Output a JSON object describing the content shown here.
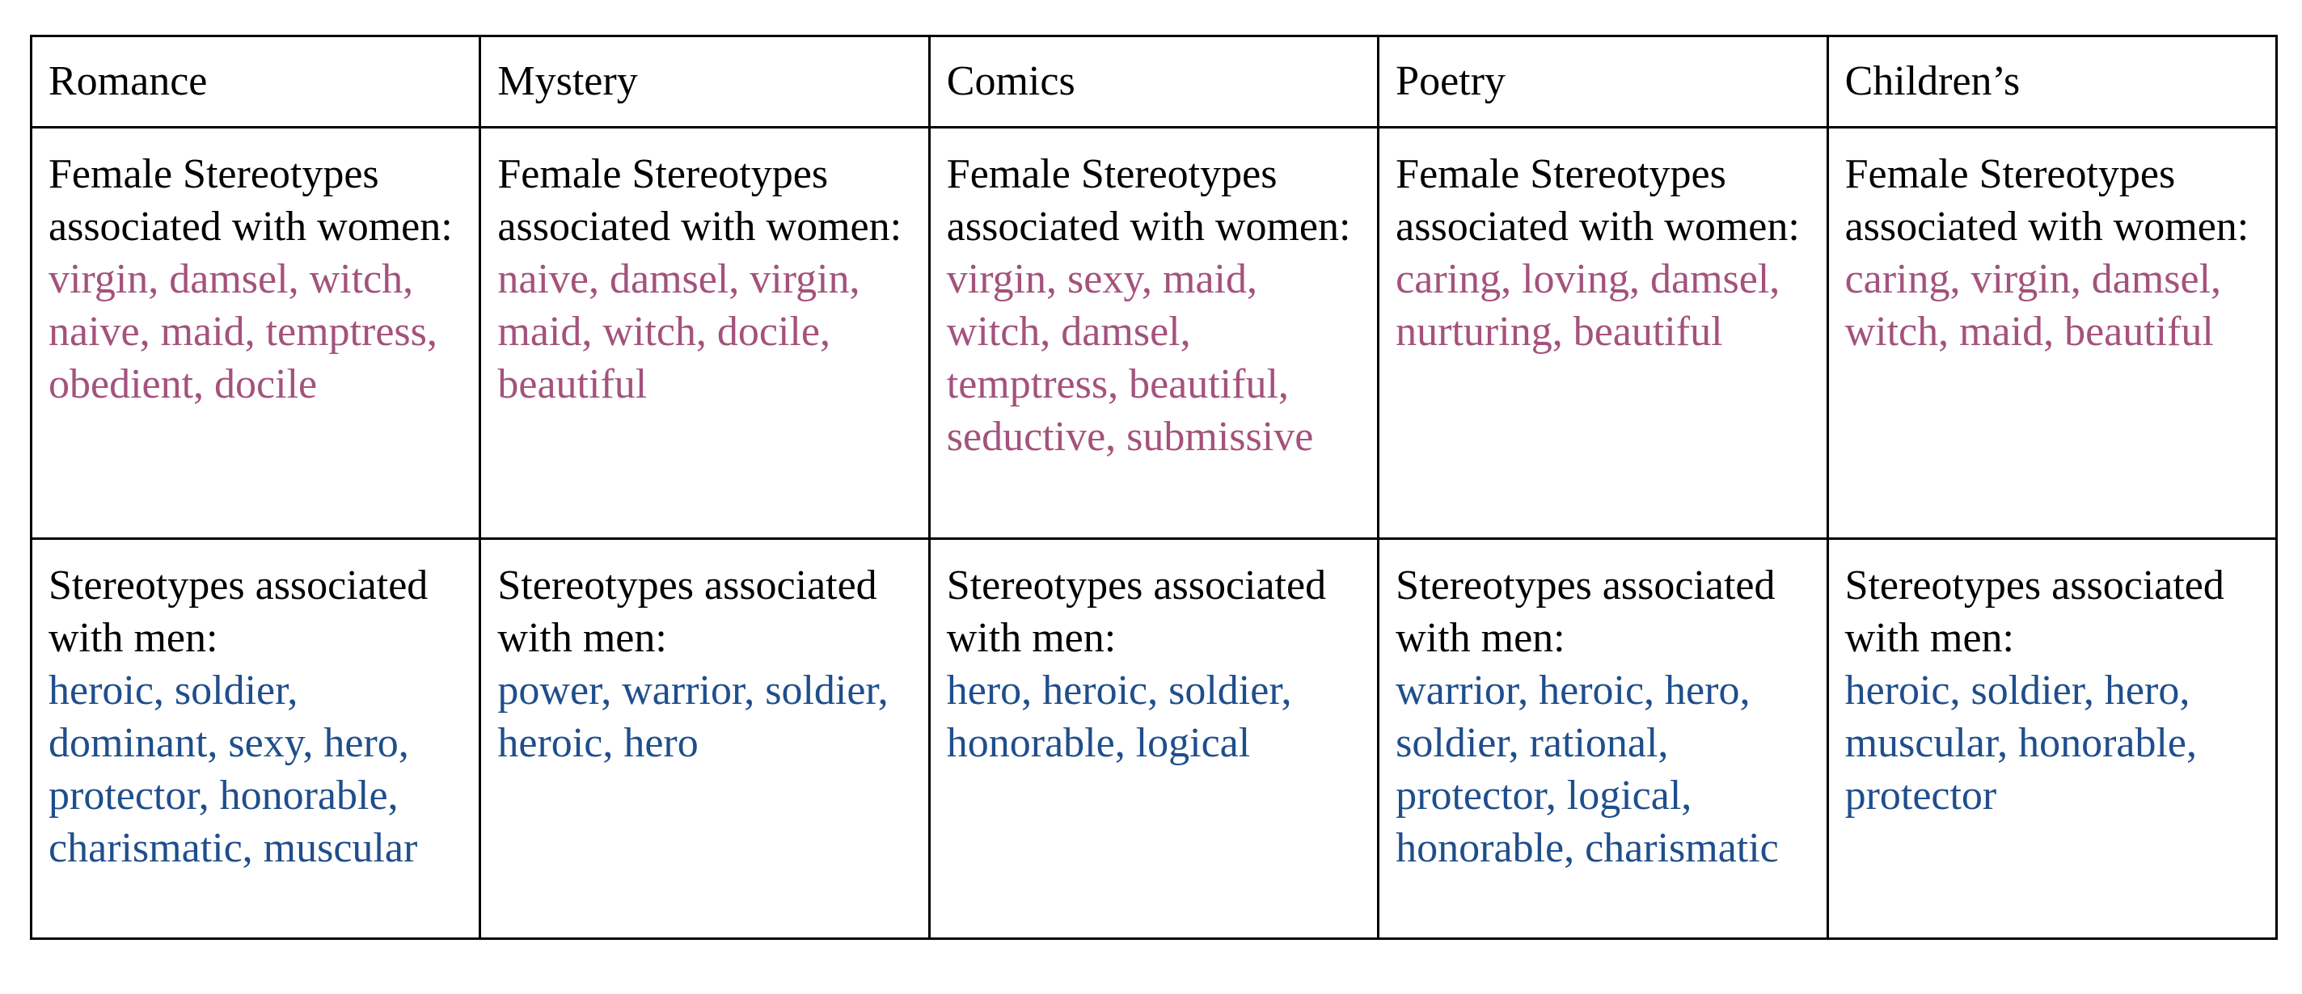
{
  "colors": {
    "female_terms": "#a4527c",
    "male_terms": "#1f4e8c",
    "text": "#000000",
    "border": "#000000"
  },
  "table": {
    "headers": [
      "Romance",
      "Mystery",
      "Comics",
      "Poetry",
      "Children’s"
    ],
    "female_label": "Female Stereotypes associated with women:",
    "male_label": "Stereotypes associated with men:",
    "female_terms": [
      "virgin, damsel, witch, naive, maid, temptress, obedient, docile",
      "naive, damsel, virgin, maid, witch, docile, beautiful",
      "virgin, sexy, maid, witch, damsel, temptress, beautiful, seductive, submissive",
      "caring, loving, damsel, nurturing, beautiful",
      "caring, virgin, damsel, witch, maid, beautiful"
    ],
    "male_terms": [
      "heroic, soldier, dominant, sexy, hero, protector, honorable, charismatic, muscular",
      "power, warrior, soldier, heroic, hero",
      "hero, heroic, soldier, honorable, logical",
      "warrior, heroic, hero, soldier, rational, protector, logical, honorable, charismatic",
      "heroic, soldier, hero, muscular, honorable, protector"
    ]
  }
}
